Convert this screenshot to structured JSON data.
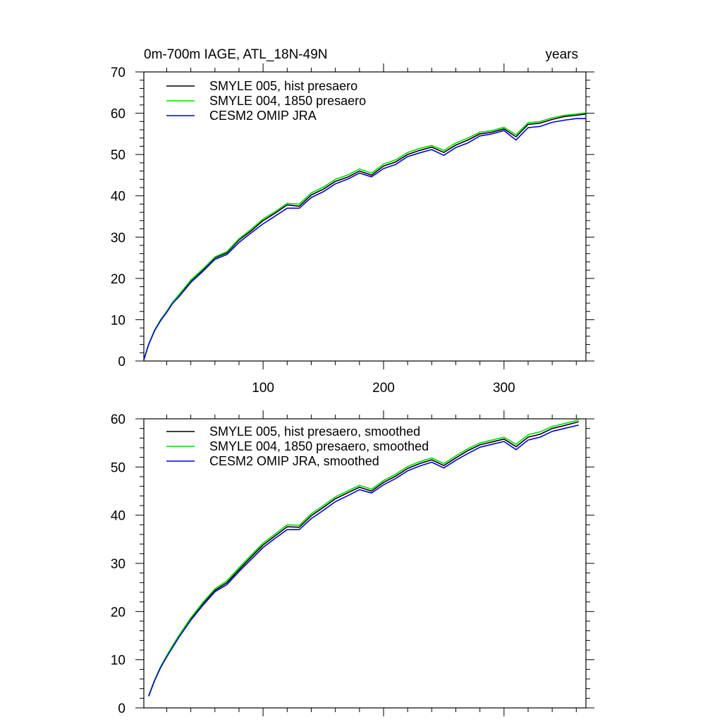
{
  "figure": {
    "title_left": "0m-700m IAGE, ATL_18N-49N",
    "title_right": "years"
  },
  "chart_data": [
    {
      "type": "line",
      "title": "0m-700m IAGE, ATL_18N-49N",
      "units": "years",
      "xlim": [
        1,
        368
      ],
      "ylim": [
        0,
        70
      ],
      "x_major_ticks": [
        100,
        200,
        300
      ],
      "x_tick_labels": [
        "100",
        "200",
        "300"
      ],
      "y_major_ticks": [
        0,
        10,
        20,
        30,
        40,
        50,
        60,
        70
      ],
      "y_tick_labels": [
        "0",
        "10",
        "20",
        "30",
        "40",
        "50",
        "60",
        "70"
      ],
      "legend": "top-left",
      "series": [
        {
          "name": "SMYLE 005, hist presaero",
          "color": "#000000",
          "x": [
            1,
            5,
            10,
            15,
            20,
            25,
            30,
            40,
            50,
            60,
            70,
            80,
            90,
            100,
            110,
            120,
            130,
            140,
            150,
            160,
            170,
            180,
            190,
            200,
            210,
            220,
            230,
            240,
            250,
            260,
            270,
            280,
            290,
            300,
            310,
            320,
            330,
            340,
            350,
            360,
            368
          ],
          "y": [
            0.3,
            4,
            7.5,
            10,
            12,
            14.2,
            15.8,
            19.4,
            22.1,
            25,
            26.2,
            29.3,
            31.5,
            34,
            35.8,
            37.8,
            37.5,
            40.2,
            41.6,
            43.5,
            44.5,
            46,
            45,
            47.2,
            48.2,
            50,
            51,
            51.8,
            50.5,
            52.3,
            53.5,
            55,
            55.4,
            56.2,
            54.3,
            57.3,
            57.6,
            58.5,
            59.2,
            59.5,
            59.8
          ]
        },
        {
          "name": "SMYLE 004, 1850 presaero",
          "color": "#00dd00",
          "x": [
            1,
            5,
            10,
            15,
            20,
            25,
            30,
            40,
            50,
            60,
            70,
            80,
            90,
            100,
            110,
            120,
            130,
            140,
            150,
            160,
            170,
            180,
            190,
            200,
            210,
            220,
            230,
            240,
            250,
            260,
            270,
            280,
            290,
            300,
            310,
            320,
            330,
            340,
            350,
            360,
            368
          ],
          "y": [
            0.3,
            4,
            7.5,
            10,
            12,
            14.3,
            16,
            19.6,
            22.3,
            25.2,
            26.5,
            29.6,
            31.9,
            34.4,
            36.2,
            38.2,
            38,
            40.7,
            42.1,
            44,
            45,
            46.5,
            45.5,
            47.7,
            48.7,
            50.5,
            51.5,
            52.2,
            51,
            52.8,
            54,
            55.4,
            55.8,
            56.6,
            54.8,
            57.7,
            58,
            58.9,
            59.5,
            59.8,
            60.1
          ]
        },
        {
          "name": "CESM2 OMIP JRA",
          "color": "#0000dd",
          "x": [
            1,
            5,
            10,
            15,
            20,
            25,
            30,
            40,
            50,
            60,
            70,
            80,
            90,
            100,
            110,
            120,
            130,
            140,
            150,
            160,
            170,
            180,
            190,
            200,
            210,
            220,
            230,
            240,
            250,
            260,
            270,
            280,
            290,
            300,
            310,
            320,
            330,
            340,
            350,
            360,
            368
          ],
          "y": [
            0.3,
            4,
            7.4,
            9.8,
            11.8,
            14,
            15.5,
            19,
            21.7,
            24.6,
            25.8,
            28.7,
            31,
            33.2,
            35.1,
            37,
            37,
            39.6,
            41,
            42.9,
            44,
            45.5,
            44.6,
            46.6,
            47.6,
            49.5,
            50.4,
            51.2,
            49.8,
            51.7,
            52.8,
            54.5,
            55,
            55.8,
            53.5,
            56.5,
            56.8,
            57.8,
            58.3,
            58.7,
            58.7
          ]
        }
      ]
    },
    {
      "type": "line",
      "xlim": [
        1,
        368
      ],
      "ylim": [
        0,
        60
      ],
      "x_major_ticks": [
        100,
        200,
        300
      ],
      "x_tick_labels": [],
      "y_major_ticks": [
        0,
        10,
        20,
        30,
        40,
        50,
        60
      ],
      "y_tick_labels": [
        "0",
        "10",
        "20",
        "30",
        "40",
        "50",
        "60"
      ],
      "legend": "top-left",
      "series": [
        {
          "name": "SMYLE 005, hist presaero, smoothed",
          "color": "#000000",
          "x": [
            5,
            10,
            15,
            20,
            25,
            30,
            40,
            50,
            60,
            70,
            80,
            90,
            100,
            110,
            120,
            130,
            140,
            150,
            160,
            170,
            180,
            190,
            200,
            210,
            220,
            230,
            240,
            250,
            260,
            270,
            280,
            290,
            300,
            310,
            320,
            330,
            340,
            350,
            362
          ],
          "y": [
            2.5,
            5.8,
            8.5,
            10.7,
            12.8,
            14.8,
            18.5,
            21.6,
            24.4,
            26,
            28.7,
            31.3,
            33.8,
            35.7,
            37.6,
            37.5,
            39.9,
            41.6,
            43.4,
            44.6,
            45.8,
            45,
            46.8,
            48.1,
            49.7,
            50.7,
            51.5,
            50.3,
            51.9,
            53.4,
            54.6,
            55.2,
            55.8,
            54.2,
            56.2,
            56.8,
            58,
            58.6,
            59.4
          ]
        },
        {
          "name": "SMYLE 004, 1850 presaero, smoothed",
          "color": "#00dd00",
          "x": [
            5,
            10,
            15,
            20,
            25,
            30,
            40,
            50,
            60,
            70,
            80,
            90,
            100,
            110,
            120,
            130,
            140,
            150,
            160,
            170,
            180,
            190,
            200,
            210,
            220,
            230,
            240,
            250,
            260,
            270,
            280,
            290,
            300,
            310,
            320,
            330,
            340,
            350,
            362
          ],
          "y": [
            2.5,
            5.8,
            8.6,
            10.9,
            13,
            15,
            18.7,
            21.9,
            24.7,
            26.4,
            29.1,
            31.7,
            34.2,
            36.1,
            38,
            37.9,
            40.3,
            42,
            43.8,
            45,
            46.2,
            45.4,
            47.2,
            48.5,
            50.1,
            51.1,
            51.9,
            50.7,
            52.3,
            53.8,
            55,
            55.6,
            56.2,
            54.7,
            56.7,
            57.3,
            58.4,
            59,
            59.8
          ]
        },
        {
          "name": "CESM2 OMIP JRA, smoothed",
          "color": "#0000dd",
          "x": [
            5,
            10,
            15,
            20,
            25,
            30,
            40,
            50,
            60,
            70,
            80,
            90,
            100,
            110,
            120,
            130,
            140,
            150,
            160,
            170,
            180,
            190,
            200,
            210,
            220,
            230,
            240,
            250,
            260,
            270,
            280,
            290,
            300,
            310,
            320,
            330,
            340,
            350,
            362
          ],
          "y": [
            2.4,
            5.7,
            8.4,
            10.6,
            12.6,
            14.6,
            18.2,
            21.3,
            24.1,
            25.6,
            28.3,
            30.8,
            33.3,
            35.2,
            37,
            37,
            39.3,
            41,
            42.8,
            44,
            45.3,
            44.6,
            46.3,
            47.6,
            49.2,
            50.2,
            51,
            49.8,
            51.4,
            52.8,
            54.1,
            54.7,
            55.3,
            53.6,
            55.6,
            56.2,
            57.4,
            58,
            58.7
          ]
        }
      ]
    }
  ]
}
